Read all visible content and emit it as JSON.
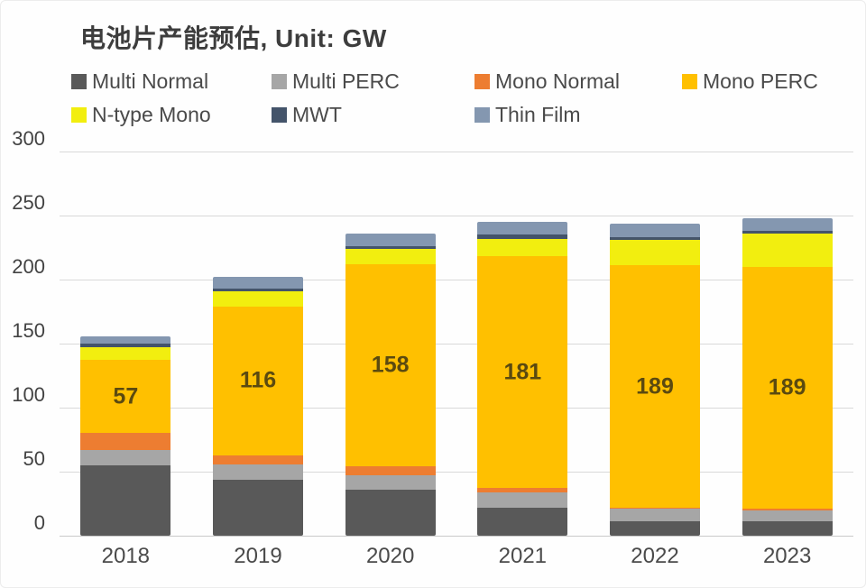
{
  "title": "电池片产能预估, Unit: GW",
  "chart_data": {
    "type": "bar",
    "stacked": true,
    "title": "电池片产能预估, Unit: GW",
    "unit": "GW",
    "categories": [
      "2018",
      "2019",
      "2020",
      "2021",
      "2022",
      "2023"
    ],
    "series": [
      {
        "name": "Multi Normal",
        "color": "#595959",
        "values": [
          55,
          44,
          36,
          22,
          11,
          11
        ]
      },
      {
        "name": "Multi PERC",
        "color": "#a6a6a6",
        "values": [
          12,
          12,
          11,
          12,
          10,
          9
        ]
      },
      {
        "name": "Mono Normal",
        "color": "#ed7d31",
        "values": [
          13,
          7,
          7,
          3,
          1,
          1
        ]
      },
      {
        "name": "Mono PERC",
        "color": "#ffc000",
        "values": [
          57,
          116,
          158,
          181,
          189,
          189
        ]
      },
      {
        "name": "N-type Mono",
        "color": "#f2ee0f",
        "values": [
          10,
          12,
          12,
          14,
          20,
          26
        ]
      },
      {
        "name": "MWT",
        "color": "#44546a",
        "values": [
          3,
          2,
          2,
          3,
          2,
          2
        ]
      },
      {
        "name": "Thin Film",
        "color": "#8497b0",
        "values": [
          6,
          9,
          10,
          10,
          11,
          10
        ]
      }
    ],
    "labeled_series": "Mono PERC",
    "value_labels": [
      57,
      116,
      158,
      181,
      189,
      189
    ],
    "value_label_color": "#5b4a10",
    "ylim": [
      0,
      300
    ],
    "yticks": [
      0,
      50,
      100,
      150,
      200,
      250,
      300
    ],
    "grid": true,
    "gridline_color": "#d9d9d9",
    "legend_position": "top",
    "xlabel": "",
    "ylabel": ""
  },
  "layout_note": "stacked column chart, legend above plot in two rows"
}
